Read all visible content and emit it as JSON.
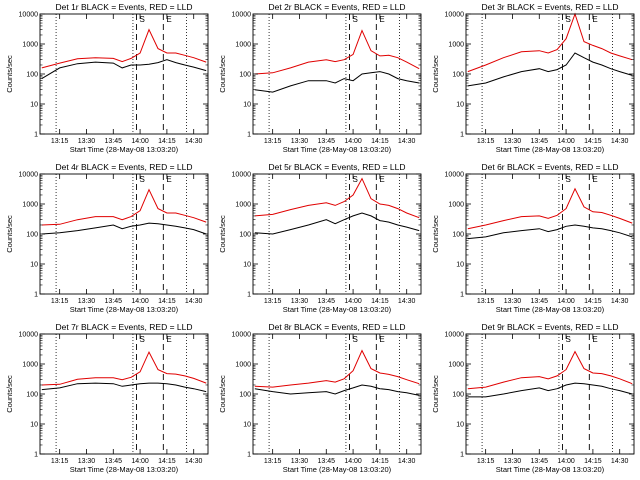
{
  "figure": {
    "colors": {
      "events": "#000000",
      "lld": "#e00000",
      "axes": "#000000"
    }
  },
  "chart_data": [
    {
      "type": "line",
      "title": "Det 1r BLACK = Events, RED = LLD",
      "ylabel": "Counts/sec",
      "xlabel": "Start Time (28-May-08 13:03:20)",
      "yscale": "log",
      "ylim": [
        1,
        10000
      ],
      "x_ticks": [
        "13:15",
        "13:30",
        "13:45",
        "14:00",
        "14:15",
        "14:30"
      ],
      "y_ticks": [
        "1",
        "10",
        "100",
        "1000",
        "10000"
      ],
      "markers": [
        {
          "label": "S",
          "x": "13:58"
        },
        {
          "label": "E",
          "x": "14:13"
        }
      ],
      "dotted_lines": [
        "13:13",
        "13:56",
        "14:26"
      ],
      "series": [
        {
          "name": "Events",
          "color": "#000000",
          "x": [
            "13:05",
            "13:15",
            "13:25",
            "13:35",
            "13:45",
            "13:50",
            "13:55",
            "14:00",
            "14:05",
            "14:10",
            "14:15",
            "14:20",
            "14:25",
            "14:30",
            "14:37"
          ],
          "values": [
            70,
            160,
            220,
            250,
            230,
            160,
            200,
            200,
            210,
            240,
            300,
            240,
            200,
            170,
            130
          ]
        },
        {
          "name": "LLD",
          "color": "#e00000",
          "x": [
            "13:05",
            "13:15",
            "13:25",
            "13:35",
            "13:45",
            "13:50",
            "13:55",
            "14:00",
            "14:05",
            "14:10",
            "14:15",
            "14:20",
            "14:25",
            "14:30",
            "14:37"
          ],
          "values": [
            160,
            230,
            320,
            350,
            330,
            260,
            330,
            500,
            3000,
            700,
            500,
            500,
            420,
            350,
            250
          ]
        }
      ]
    },
    {
      "type": "line",
      "title": "Det 2r BLACK = Events, RED = LLD",
      "ylabel": "Counts/sec",
      "xlabel": "Start Time (28-May-08 13:03:20)",
      "yscale": "log",
      "ylim": [
        1,
        10000
      ],
      "x_ticks": [
        "13:15",
        "13:30",
        "13:45",
        "14:00",
        "14:15",
        "14:30"
      ],
      "y_ticks": [
        "1",
        "10",
        "100",
        "1000",
        "10000"
      ],
      "markers": [
        {
          "label": "S",
          "x": "13:58"
        },
        {
          "label": "E",
          "x": "14:13"
        }
      ],
      "dotted_lines": [
        "13:13",
        "13:56",
        "14:26"
      ],
      "series": [
        {
          "name": "Events",
          "color": "#000000",
          "x": [
            "13:05",
            "13:15",
            "13:25",
            "13:35",
            "13:45",
            "13:50",
            "13:55",
            "14:00",
            "14:05",
            "14:10",
            "14:15",
            "14:20",
            "14:25",
            "14:30",
            "14:37"
          ],
          "values": [
            30,
            25,
            40,
            60,
            60,
            50,
            70,
            60,
            100,
            110,
            120,
            100,
            70,
            60,
            50
          ]
        },
        {
          "name": "LLD",
          "color": "#e00000",
          "x": [
            "13:05",
            "13:15",
            "13:25",
            "13:35",
            "13:45",
            "13:50",
            "13:55",
            "14:00",
            "14:05",
            "14:10",
            "14:15",
            "14:20",
            "14:25",
            "14:30",
            "14:37"
          ],
          "values": [
            100,
            110,
            160,
            250,
            300,
            260,
            300,
            450,
            2800,
            600,
            400,
            420,
            350,
            250,
            150
          ]
        }
      ]
    },
    {
      "type": "line",
      "title": "Det 3r BLACK = Events, RED = LLD",
      "ylabel": "Counts/sec",
      "xlabel": "Start Time (28-May-08 13:03:20)",
      "yscale": "log",
      "ylim": [
        1,
        10000
      ],
      "x_ticks": [
        "13:15",
        "13:30",
        "13:45",
        "14:00",
        "14:15",
        "14:30"
      ],
      "y_ticks": [
        "1",
        "10",
        "100",
        "1000",
        "10000"
      ],
      "markers": [
        {
          "label": "S",
          "x": "13:58"
        },
        {
          "label": "E",
          "x": "14:13"
        }
      ],
      "dotted_lines": [
        "13:13",
        "13:56",
        "14:26"
      ],
      "series": [
        {
          "name": "Events",
          "color": "#000000",
          "x": [
            "13:05",
            "13:15",
            "13:25",
            "13:35",
            "13:45",
            "13:50",
            "13:55",
            "14:00",
            "14:05",
            "14:10",
            "14:15",
            "14:20",
            "14:25",
            "14:30",
            "14:37"
          ],
          "values": [
            40,
            50,
            80,
            120,
            150,
            120,
            140,
            200,
            500,
            350,
            250,
            200,
            150,
            120,
            90
          ]
        },
        {
          "name": "LLD",
          "color": "#e00000",
          "x": [
            "13:05",
            "13:15",
            "13:25",
            "13:35",
            "13:45",
            "13:50",
            "13:55",
            "14:00",
            "14:05",
            "14:10",
            "14:15",
            "14:20",
            "14:25",
            "14:30",
            "14:37"
          ],
          "values": [
            120,
            200,
            350,
            550,
            600,
            500,
            650,
            1500,
            10000,
            1200,
            900,
            700,
            500,
            400,
            300
          ]
        }
      ]
    },
    {
      "type": "line",
      "title": "Det 4r BLACK = Events, RED = LLD",
      "ylabel": "Counts/sec",
      "xlabel": "Start Time (28-May-08 13:03:20)",
      "yscale": "log",
      "ylim": [
        1,
        10000
      ],
      "x_ticks": [
        "13:15",
        "13:30",
        "13:45",
        "14:00",
        "14:15",
        "14:30"
      ],
      "y_ticks": [
        "1",
        "10",
        "100",
        "1000",
        "10000"
      ],
      "markers": [
        {
          "label": "S",
          "x": "13:58"
        },
        {
          "label": "E",
          "x": "14:13"
        }
      ],
      "dotted_lines": [
        "13:13",
        "13:56",
        "14:26"
      ],
      "series": [
        {
          "name": "Events",
          "color": "#000000",
          "x": [
            "13:05",
            "13:15",
            "13:25",
            "13:35",
            "13:45",
            "13:50",
            "13:55",
            "14:00",
            "14:05",
            "14:10",
            "14:15",
            "14:20",
            "14:25",
            "14:30",
            "14:37"
          ],
          "values": [
            100,
            110,
            130,
            160,
            200,
            150,
            180,
            200,
            230,
            220,
            200,
            180,
            160,
            140,
            100
          ]
        },
        {
          "name": "LLD",
          "color": "#e00000",
          "x": [
            "13:05",
            "13:15",
            "13:25",
            "13:35",
            "13:45",
            "13:50",
            "13:55",
            "14:00",
            "14:05",
            "14:10",
            "14:15",
            "14:20",
            "14:25",
            "14:30",
            "14:37"
          ],
          "values": [
            200,
            210,
            300,
            380,
            380,
            300,
            380,
            600,
            3000,
            700,
            500,
            500,
            420,
            350,
            250
          ]
        }
      ]
    },
    {
      "type": "line",
      "title": "Det 5r BLACK = Events, RED = LLD",
      "ylabel": "Counts/sec",
      "xlabel": "Start Time (28-May-08 13:03:20)",
      "yscale": "log",
      "ylim": [
        1,
        10000
      ],
      "x_ticks": [
        "13:15",
        "13:30",
        "13:45",
        "14:00",
        "14:15",
        "14:30"
      ],
      "y_ticks": [
        "1",
        "10",
        "100",
        "1000",
        "10000"
      ],
      "markers": [
        {
          "label": "S",
          "x": "13:58"
        },
        {
          "label": "E",
          "x": "14:13"
        }
      ],
      "dotted_lines": [
        "13:13",
        "13:56",
        "14:26"
      ],
      "series": [
        {
          "name": "Events",
          "color": "#000000",
          "x": [
            "13:05",
            "13:15",
            "13:25",
            "13:35",
            "13:45",
            "13:50",
            "13:55",
            "14:00",
            "14:05",
            "14:10",
            "14:15",
            "14:20",
            "14:25",
            "14:30",
            "14:37"
          ],
          "values": [
            110,
            100,
            140,
            200,
            300,
            220,
            300,
            400,
            500,
            400,
            280,
            250,
            200,
            170,
            130
          ]
        },
        {
          "name": "LLD",
          "color": "#e00000",
          "x": [
            "13:05",
            "13:15",
            "13:25",
            "13:35",
            "13:45",
            "13:50",
            "13:55",
            "14:00",
            "14:05",
            "14:10",
            "14:15",
            "14:20",
            "14:25",
            "14:30",
            "14:37"
          ],
          "values": [
            400,
            450,
            650,
            900,
            1100,
            900,
            1200,
            2000,
            7000,
            1500,
            1000,
            900,
            700,
            500,
            350
          ]
        }
      ]
    },
    {
      "type": "line",
      "title": "Det 6r BLACK = Events, RED = LLD",
      "ylabel": "Counts/sec",
      "xlabel": "Start Time (28-May-08 13:03:20)",
      "yscale": "log",
      "ylim": [
        1,
        10000
      ],
      "x_ticks": [
        "13:15",
        "13:30",
        "13:45",
        "14:00",
        "14:15",
        "14:30"
      ],
      "y_ticks": [
        "1",
        "10",
        "100",
        "1000",
        "10000"
      ],
      "markers": [
        {
          "label": "S",
          "x": "13:58"
        },
        {
          "label": "E",
          "x": "14:13"
        }
      ],
      "dotted_lines": [
        "13:13",
        "13:56",
        "14:26"
      ],
      "series": [
        {
          "name": "Events",
          "color": "#000000",
          "x": [
            "13:05",
            "13:15",
            "13:25",
            "13:35",
            "13:45",
            "13:50",
            "13:55",
            "14:00",
            "14:05",
            "14:10",
            "14:15",
            "14:20",
            "14:25",
            "14:30",
            "14:37"
          ],
          "values": [
            70,
            80,
            110,
            130,
            150,
            120,
            140,
            180,
            200,
            180,
            160,
            150,
            130,
            110,
            80
          ]
        },
        {
          "name": "LLD",
          "color": "#e00000",
          "x": [
            "13:05",
            "13:15",
            "13:25",
            "13:35",
            "13:45",
            "13:50",
            "13:55",
            "14:00",
            "14:05",
            "14:10",
            "14:15",
            "14:20",
            "14:25",
            "14:30",
            "14:37"
          ],
          "values": [
            150,
            200,
            280,
            380,
            400,
            330,
            420,
            700,
            3200,
            800,
            550,
            520,
            420,
            330,
            230
          ]
        }
      ]
    },
    {
      "type": "line",
      "title": "Det 7r BLACK = Events, RED = LLD",
      "ylabel": "Counts/sec",
      "xlabel": "Start Time (28-May-08 13:03:20)",
      "yscale": "log",
      "ylim": [
        1,
        10000
      ],
      "x_ticks": [
        "13:15",
        "13:30",
        "13:45",
        "14:00",
        "14:15",
        "14:30"
      ],
      "y_ticks": [
        "1",
        "10",
        "100",
        "1000",
        "10000"
      ],
      "markers": [
        {
          "label": "S",
          "x": "13:58"
        },
        {
          "label": "E",
          "x": "14:13"
        }
      ],
      "dotted_lines": [
        "13:13",
        "13:56",
        "14:26"
      ],
      "series": [
        {
          "name": "Events",
          "color": "#000000",
          "x": [
            "13:05",
            "13:15",
            "13:25",
            "13:35",
            "13:45",
            "13:50",
            "13:55",
            "14:00",
            "14:05",
            "14:10",
            "14:15",
            "14:20",
            "14:25",
            "14:30",
            "14:37"
          ],
          "values": [
            140,
            160,
            220,
            230,
            220,
            180,
            200,
            220,
            230,
            230,
            220,
            200,
            170,
            150,
            120
          ]
        },
        {
          "name": "LLD",
          "color": "#e00000",
          "x": [
            "13:05",
            "13:15",
            "13:25",
            "13:35",
            "13:45",
            "13:50",
            "13:55",
            "14:00",
            "14:05",
            "14:10",
            "14:15",
            "14:20",
            "14:25",
            "14:30",
            "14:37"
          ],
          "values": [
            200,
            210,
            310,
            350,
            350,
            300,
            360,
            550,
            2500,
            650,
            480,
            460,
            400,
            330,
            230
          ]
        }
      ]
    },
    {
      "type": "line",
      "title": "Det 8r BLACK = Events, RED = LLD",
      "ylabel": "Counts/sec",
      "xlabel": "Start Time (28-May-08 13:03:20)",
      "yscale": "log",
      "ylim": [
        1,
        10000
      ],
      "x_ticks": [
        "13:15",
        "13:30",
        "13:45",
        "14:00",
        "14:15",
        "14:30"
      ],
      "y_ticks": [
        "1",
        "10",
        "100",
        "1000",
        "10000"
      ],
      "markers": [
        {
          "label": "S",
          "x": "13:58"
        },
        {
          "label": "E",
          "x": "14:13"
        }
      ],
      "dotted_lines": [
        "13:13",
        "13:56",
        "14:26"
      ],
      "series": [
        {
          "name": "Events",
          "color": "#000000",
          "x": [
            "13:05",
            "13:15",
            "13:25",
            "13:35",
            "13:45",
            "13:50",
            "13:55",
            "14:00",
            "14:05",
            "14:10",
            "14:15",
            "14:20",
            "14:25",
            "14:30",
            "14:37"
          ],
          "values": [
            150,
            120,
            100,
            110,
            120,
            100,
            130,
            160,
            200,
            180,
            150,
            140,
            120,
            110,
            90
          ]
        },
        {
          "name": "LLD",
          "color": "#e00000",
          "x": [
            "13:05",
            "13:15",
            "13:25",
            "13:35",
            "13:45",
            "13:50",
            "13:55",
            "14:00",
            "14:05",
            "14:10",
            "14:15",
            "14:20",
            "14:25",
            "14:30",
            "14:37"
          ],
          "values": [
            180,
            170,
            200,
            230,
            280,
            250,
            320,
            600,
            2800,
            700,
            500,
            450,
            380,
            300,
            220
          ]
        }
      ]
    },
    {
      "type": "line",
      "title": "Det 9r BLACK = Events, RED = LLD",
      "ylabel": "Counts/sec",
      "xlabel": "Start Time (28-May-08 13:03:20)",
      "yscale": "log",
      "ylim": [
        1,
        10000
      ],
      "x_ticks": [
        "13:15",
        "13:30",
        "13:45",
        "14:00",
        "14:15",
        "14:30"
      ],
      "y_ticks": [
        "1",
        "10",
        "100",
        "1000",
        "10000"
      ],
      "markers": [
        {
          "label": "S",
          "x": "13:58"
        },
        {
          "label": "E",
          "x": "14:13"
        }
      ],
      "dotted_lines": [
        "13:13",
        "13:56",
        "14:26"
      ],
      "series": [
        {
          "name": "Events",
          "color": "#000000",
          "x": [
            "13:05",
            "13:15",
            "13:25",
            "13:35",
            "13:45",
            "13:50",
            "13:55",
            "14:00",
            "14:05",
            "14:10",
            "14:15",
            "14:20",
            "14:25",
            "14:30",
            "14:37"
          ],
          "values": [
            80,
            80,
            100,
            130,
            160,
            130,
            150,
            200,
            230,
            220,
            200,
            180,
            150,
            130,
            100
          ]
        },
        {
          "name": "LLD",
          "color": "#e00000",
          "x": [
            "13:05",
            "13:15",
            "13:25",
            "13:35",
            "13:45",
            "13:50",
            "13:55",
            "14:00",
            "14:05",
            "14:10",
            "14:15",
            "14:20",
            "14:25",
            "14:30",
            "14:37"
          ],
          "values": [
            150,
            170,
            250,
            350,
            380,
            320,
            400,
            650,
            2600,
            700,
            500,
            480,
            400,
            320,
            220
          ]
        }
      ]
    }
  ]
}
